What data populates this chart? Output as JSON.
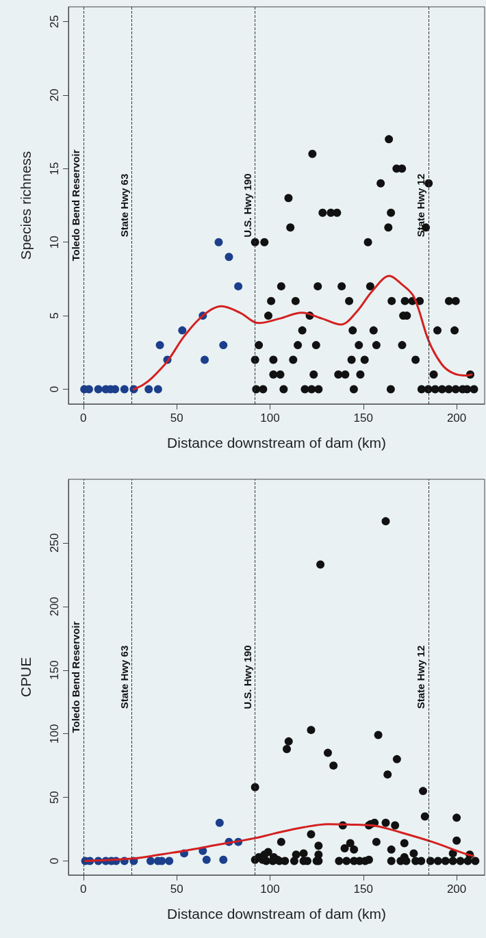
{
  "chart_data": [
    {
      "type": "scatter",
      "xlabel": "Distance downstream of dam (km)",
      "ylabel": "Species richness",
      "xlim": [
        -8,
        215
      ],
      "ylim": [
        -1,
        26
      ],
      "xticks": [
        0,
        50,
        100,
        150,
        200
      ],
      "yticks": [
        0,
        5,
        10,
        15,
        20,
        25
      ],
      "marker": "circle",
      "ref_lines": [
        {
          "axis": "x",
          "value": 0,
          "label": "Toledo Bend Reservoir",
          "line_style": "dashed",
          "color": "#333333"
        },
        {
          "axis": "x",
          "value": 26,
          "label": "State Hwy 63",
          "line_style": "dashed",
          "color": "#333333"
        },
        {
          "axis": "x",
          "value": 92,
          "label": "U.S. Hwy 190",
          "line_style": "dashed",
          "color": "#333333"
        },
        {
          "axis": "x",
          "value": 185,
          "label": "State Hwy 12",
          "line_style": "dashed",
          "color": "#333333"
        }
      ],
      "series": [
        {
          "color": "#1c3f8c",
          "x": [
            0.5,
            3,
            8,
            12,
            14.5,
            17,
            22,
            27,
            35,
            40,
            41,
            45,
            53,
            64,
            65,
            75,
            72.5,
            78,
            83
          ],
          "values": [
            0,
            0,
            0,
            0,
            0,
            0,
            0,
            0,
            0,
            0,
            3,
            2,
            4,
            5,
            2,
            3,
            10,
            9,
            7
          ]
        },
        {
          "color": "#111111",
          "x": [
            92,
            97,
            152.5,
            106,
            125.6,
            138.4,
            153.7,
            100.6,
            113.7,
            142.4,
            165.2,
            172.3,
            176.3,
            180.2,
            195.9,
            199.5,
            99.1,
            121.3,
            171.4,
            173.3,
            117.3,
            144.3,
            155.5,
            189.7,
            198.9,
            94,
            114.9,
            124.7,
            147.6,
            157,
            170.8,
            92,
            101.8,
            112.4,
            143.7,
            150.7,
            178,
            101.8,
            105.5,
            123.4,
            136.6,
            140.3,
            148.4,
            187.7,
            207.3,
            92.6,
            96.3,
            107.3,
            118.7,
            122.3,
            126,
            144.9,
            164.7,
            181.2,
            184.8,
            188.5,
            192.2,
            195.8,
            199.5,
            203.2,
            205.6,
            209.3,
            163.7,
            122.7,
            167.8,
            170.7,
            159.3,
            185,
            109.9,
            128.2,
            132.6,
            135.9,
            164.8,
            110.9,
            163.4,
            183.5
          ],
          "values": [
            10,
            10,
            10,
            7,
            7,
            7,
            7,
            6,
            6,
            6,
            6,
            6,
            6,
            6,
            6,
            6,
            5,
            5,
            5,
            5,
            4,
            4,
            4,
            4,
            4,
            3,
            3,
            3,
            3,
            3,
            3,
            2,
            2,
            2,
            2,
            2,
            2,
            1,
            1,
            1,
            1,
            1,
            1,
            1,
            1,
            0,
            0,
            0,
            0,
            0,
            0,
            0,
            0,
            0,
            0,
            0,
            0,
            0,
            0,
            0,
            0,
            0,
            17,
            16,
            15,
            15,
            14,
            14,
            13,
            12,
            12,
            12,
            12,
            11,
            11,
            11
          ]
        },
        {
          "type": "line",
          "marker": "none",
          "color": "#d42020",
          "x": [
            27,
            32,
            37,
            45,
            54,
            64,
            74,
            84,
            94,
            105,
            117,
            128,
            138,
            146,
            155,
            164,
            170,
            177,
            185,
            192,
            198,
            205,
            208
          ],
          "values": [
            0,
            0.3,
            0.8,
            1.9,
            3.6,
            5.0,
            5.65,
            5.2,
            4.5,
            4.8,
            5.2,
            4.8,
            4.4,
            5.2,
            6.7,
            7.7,
            7.2,
            6.3,
            3.3,
            1.7,
            1.1,
            0.93,
            1.0
          ]
        }
      ]
    },
    {
      "type": "scatter",
      "xlabel": "Distance downstream of dam (km)",
      "ylabel": "CPUE",
      "xlim": [
        -8,
        215
      ],
      "ylim": [
        -11,
        300
      ],
      "xticks": [
        0,
        50,
        100,
        150,
        200
      ],
      "yticks": [
        0,
        50,
        100,
        150,
        200,
        250
      ],
      "marker": "circle",
      "ref_lines": [
        {
          "axis": "x",
          "value": 0,
          "label": "Toledo Bend Reservoir",
          "line_style": "dashed",
          "color": "#333333"
        },
        {
          "axis": "x",
          "value": 26,
          "label": "State Hwy 63",
          "line_style": "dashed",
          "color": "#333333"
        },
        {
          "axis": "x",
          "value": 92,
          "label": "U.S. Hwy 190",
          "line_style": "dashed",
          "color": "#333333"
        },
        {
          "axis": "x",
          "value": 185,
          "label": "State Hwy 12",
          "line_style": "dashed",
          "color": "#333333"
        }
      ],
      "series": [
        {
          "color": "#1c3f8c",
          "x": [
            1,
            3.5,
            8,
            12,
            15,
            17.5,
            22,
            27,
            36,
            40,
            42,
            46,
            54,
            64,
            66,
            73,
            75,
            78,
            83
          ],
          "values": [
            0,
            0,
            0,
            0,
            0,
            0,
            0,
            0,
            0,
            0,
            0,
            0,
            6,
            8,
            1,
            30,
            1,
            15,
            15
          ]
        },
        {
          "color": "#111111",
          "x": [
            92,
            92,
            94,
            96,
            97,
            99,
            102,
            104,
            98,
            101.5,
            105,
            108,
            109,
            110,
            106,
            113,
            114,
            118,
            118,
            120,
            122,
            122,
            125,
            126,
            126,
            126,
            127,
            131,
            134,
            137,
            139,
            140,
            141,
            143,
            145,
            145,
            148,
            151,
            153,
            153,
            154,
            156,
            157,
            158,
            162,
            162,
            163,
            165,
            165,
            167,
            168,
            170,
            172,
            172,
            173,
            177,
            178,
            181,
            182,
            183,
            186,
            190,
            194,
            198,
            198,
            200,
            200,
            202,
            206,
            207,
            210
          ],
          "values": [
            58,
            1,
            3,
            1,
            5,
            7,
            3,
            1,
            0,
            0,
            0,
            0,
            88,
            94,
            15,
            0,
            5,
            6,
            0,
            0,
            103,
            21,
            0,
            12,
            0,
            5,
            233,
            85,
            75,
            0,
            28,
            10,
            0,
            14,
            9,
            0,
            0,
            0,
            28,
            1,
            29,
            30,
            15,
            99,
            30,
            267,
            68,
            9,
            0,
            28,
            80,
            0,
            14,
            3,
            0,
            6,
            0,
            0,
            55,
            35,
            0,
            0,
            0,
            0,
            6,
            34,
            16,
            0,
            0,
            5,
            0
          ]
        },
        {
          "type": "line",
          "marker": "none",
          "color": "#d42020",
          "x": [
            1,
            27,
            41,
            54,
            71,
            92,
            102,
            118,
            131,
            146,
            157,
            170,
            187,
            205,
            209
          ],
          "values": [
            0,
            2,
            5,
            8,
            12.5,
            18,
            21.5,
            26.5,
            29,
            28.5,
            27.5,
            22.5,
            15,
            5.5,
            4
          ]
        }
      ]
    }
  ]
}
